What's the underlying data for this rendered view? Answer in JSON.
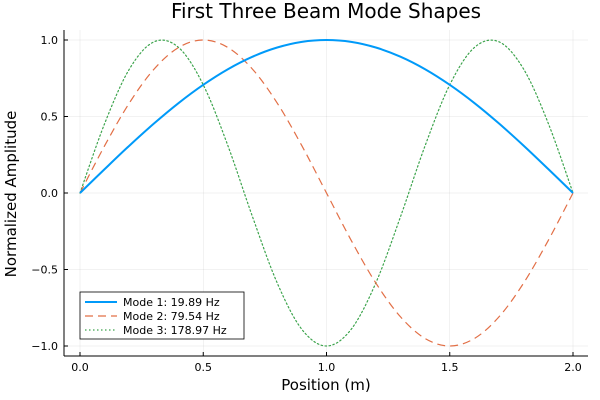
{
  "chart_data": {
    "type": "line",
    "title": "First Three Beam Mode Shapes",
    "xlabel": "Position (m)",
    "ylabel": "Normalized Amplitude",
    "xlim": [
      0,
      2
    ],
    "ylim": [
      -1,
      1
    ],
    "x_ticks": [
      0.0,
      0.5,
      1.0,
      1.5,
      2.0
    ],
    "x_tick_labels": [
      "0.0",
      "0.5",
      "1.0",
      "1.5",
      "2.0"
    ],
    "y_ticks": [
      -1.0,
      -0.5,
      0.0,
      0.5,
      1.0
    ],
    "y_tick_labels": [
      "−1.0",
      "−0.5",
      "0.0",
      "0.5",
      "1.0"
    ],
    "grid": true,
    "legend_position": "bottom-left",
    "x": [
      0.0,
      0.1,
      0.2,
      0.3,
      0.4,
      0.5,
      0.6,
      0.7,
      0.8,
      0.9,
      1.0,
      1.1,
      1.2,
      1.3,
      1.4,
      1.5,
      1.6,
      1.7,
      1.8,
      1.9,
      2.0
    ],
    "series": [
      {
        "name": "Mode 1: 19.89 Hz",
        "color": "#009af9",
        "style": "solid",
        "values": [
          0.0,
          0.156,
          0.309,
          0.454,
          0.588,
          0.707,
          0.809,
          0.891,
          0.951,
          0.988,
          1.0,
          0.988,
          0.951,
          0.891,
          0.809,
          0.707,
          0.588,
          0.454,
          0.309,
          0.156,
          0.0
        ]
      },
      {
        "name": "Mode 2: 79.54 Hz",
        "color": "#e26f46",
        "style": "dashed",
        "values": [
          0.0,
          0.309,
          0.588,
          0.809,
          0.951,
          1.0,
          0.951,
          0.809,
          0.588,
          0.309,
          0.0,
          -0.309,
          -0.588,
          -0.809,
          -0.951,
          -1.0,
          -0.951,
          -0.809,
          -0.588,
          -0.309,
          0.0
        ]
      },
      {
        "name": "Mode 3: 178.97 Hz",
        "color": "#3da44d",
        "style": "dotted",
        "values": [
          0.0,
          0.454,
          0.809,
          0.988,
          0.951,
          0.707,
          0.309,
          -0.156,
          -0.588,
          -0.891,
          -1.0,
          -0.891,
          -0.588,
          -0.156,
          0.309,
          0.707,
          0.951,
          0.988,
          0.809,
          0.454,
          0.0
        ]
      }
    ]
  }
}
